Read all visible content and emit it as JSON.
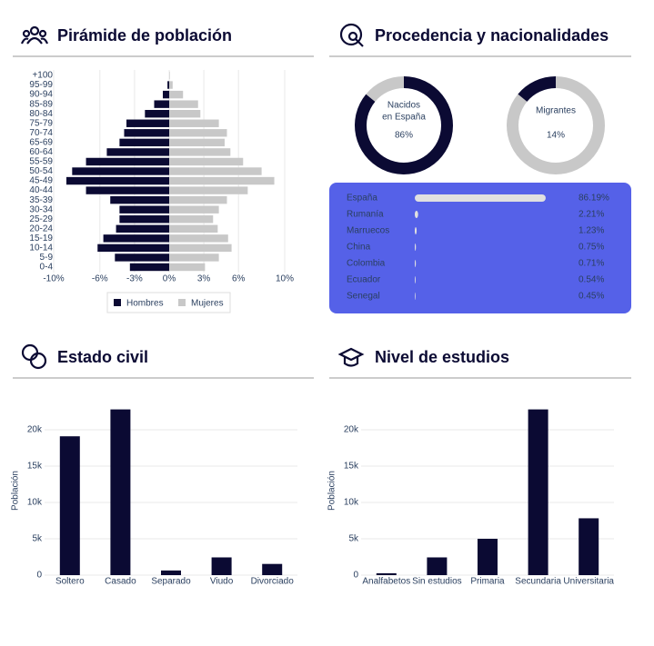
{
  "panels": [
    {
      "title": "Pirámide de población"
    },
    {
      "title": "Procedencia y nacionalidades"
    },
    {
      "title": "Estado civil"
    },
    {
      "title": "Nivel de estudios"
    }
  ],
  "chart_data": [
    {
      "type": "pyramid",
      "categories": [
        "0-4",
        "5-9",
        "10-14",
        "15-19",
        "20-24",
        "25-29",
        "30-34",
        "35-39",
        "40-44",
        "45-49",
        "50-54",
        "55-59",
        "60-64",
        "65-69",
        "70-74",
        "75-79",
        "80-84",
        "85-89",
        "90-94",
        "95-99",
        "+100"
      ],
      "series": [
        {
          "name": "Hombres",
          "color": "#0b0a33",
          "values": [
            -3.4,
            -4.7,
            -6.2,
            -5.7,
            -4.6,
            -4.3,
            -4.3,
            -5.1,
            -7.2,
            -8.9,
            -8.4,
            -7.2,
            -5.4,
            -4.3,
            -3.9,
            -3.7,
            -2.1,
            -1.3,
            -0.55,
            -0.15,
            0
          ]
        },
        {
          "name": "Mujeres",
          "color": "#c8c8c8",
          "values": [
            3.1,
            4.3,
            5.4,
            5.1,
            4.2,
            3.8,
            4.3,
            5.0,
            6.8,
            9.1,
            8.0,
            6.4,
            5.3,
            4.8,
            5.0,
            4.3,
            2.7,
            2.5,
            1.2,
            0.3,
            0.05
          ]
        }
      ],
      "xlim": [
        -10,
        10
      ],
      "xticks": [
        {
          "value": -10,
          "label": "-10%"
        },
        {
          "value": -6,
          "label": "-6%"
        },
        {
          "value": -3,
          "label": "-3%"
        },
        {
          "value": 0,
          "label": "0%"
        },
        {
          "value": 3,
          "label": "3%"
        },
        {
          "value": 6,
          "label": "6%"
        },
        {
          "value": 10,
          "label": "10%"
        }
      ],
      "grid": true
    },
    {
      "type": "donut",
      "label": [
        "Nacidos",
        "en España"
      ],
      "values": [
        86,
        14
      ],
      "colors": [
        "#0b0a33",
        "#c8c8c8"
      ],
      "value_labels": [
        "86%",
        null
      ]
    },
    {
      "type": "donut",
      "label": [
        "Migrantes"
      ],
      "values": [
        86,
        14
      ],
      "colors": [
        "#c8c8c8",
        "#0b0a33"
      ],
      "value_labels": [
        null,
        "14%"
      ]
    },
    {
      "type": "hbar",
      "categories": [
        "España",
        "Rumanía",
        "Marruecos",
        "China",
        "Colombia",
        "Ecuador",
        "Senegal"
      ],
      "values": [
        86.19,
        2.21,
        1.23,
        0.75,
        0.71,
        0.54,
        0.45
      ],
      "value_labels": [
        "86.19%",
        "2.21%",
        "1.23%",
        "0.75%",
        "0.71%",
        "0.54%",
        "0.45%"
      ],
      "xlim": [
        0,
        100
      ],
      "color": "#e0e0e0"
    },
    {
      "type": "bar",
      "y_label": "Población",
      "categories": [
        "Soltero",
        "Casado",
        "Separado",
        "Viudo",
        "Divorciado"
      ],
      "values": [
        19100,
        22800,
        640,
        2440,
        1540
      ],
      "color": "#0b0a33",
      "ylim": [
        0,
        23500
      ],
      "yticks": [
        0,
        {
          "value": 5000,
          "label": "5k"
        },
        {
          "value": 10000,
          "label": "10k"
        },
        {
          "value": 15000,
          "label": "15k"
        },
        {
          "value": 20000,
          "label": "20k"
        }
      ],
      "grid": true
    },
    {
      "type": "bar",
      "y_label": "Población",
      "categories": [
        "Analfabetos",
        "Sin estudios",
        "Primaria",
        "Secundaria",
        "Universitaria"
      ],
      "values": [
        260,
        2440,
        5000,
        22800,
        7820
      ],
      "color": "#0b0a33",
      "ylim": [
        0,
        23500
      ],
      "yticks": [
        0,
        {
          "value": 5000,
          "label": "5k"
        },
        {
          "value": 10000,
          "label": "10k"
        },
        {
          "value": 15000,
          "label": "15k"
        },
        {
          "value": 20000,
          "label": "20k"
        }
      ],
      "grid": true
    }
  ]
}
